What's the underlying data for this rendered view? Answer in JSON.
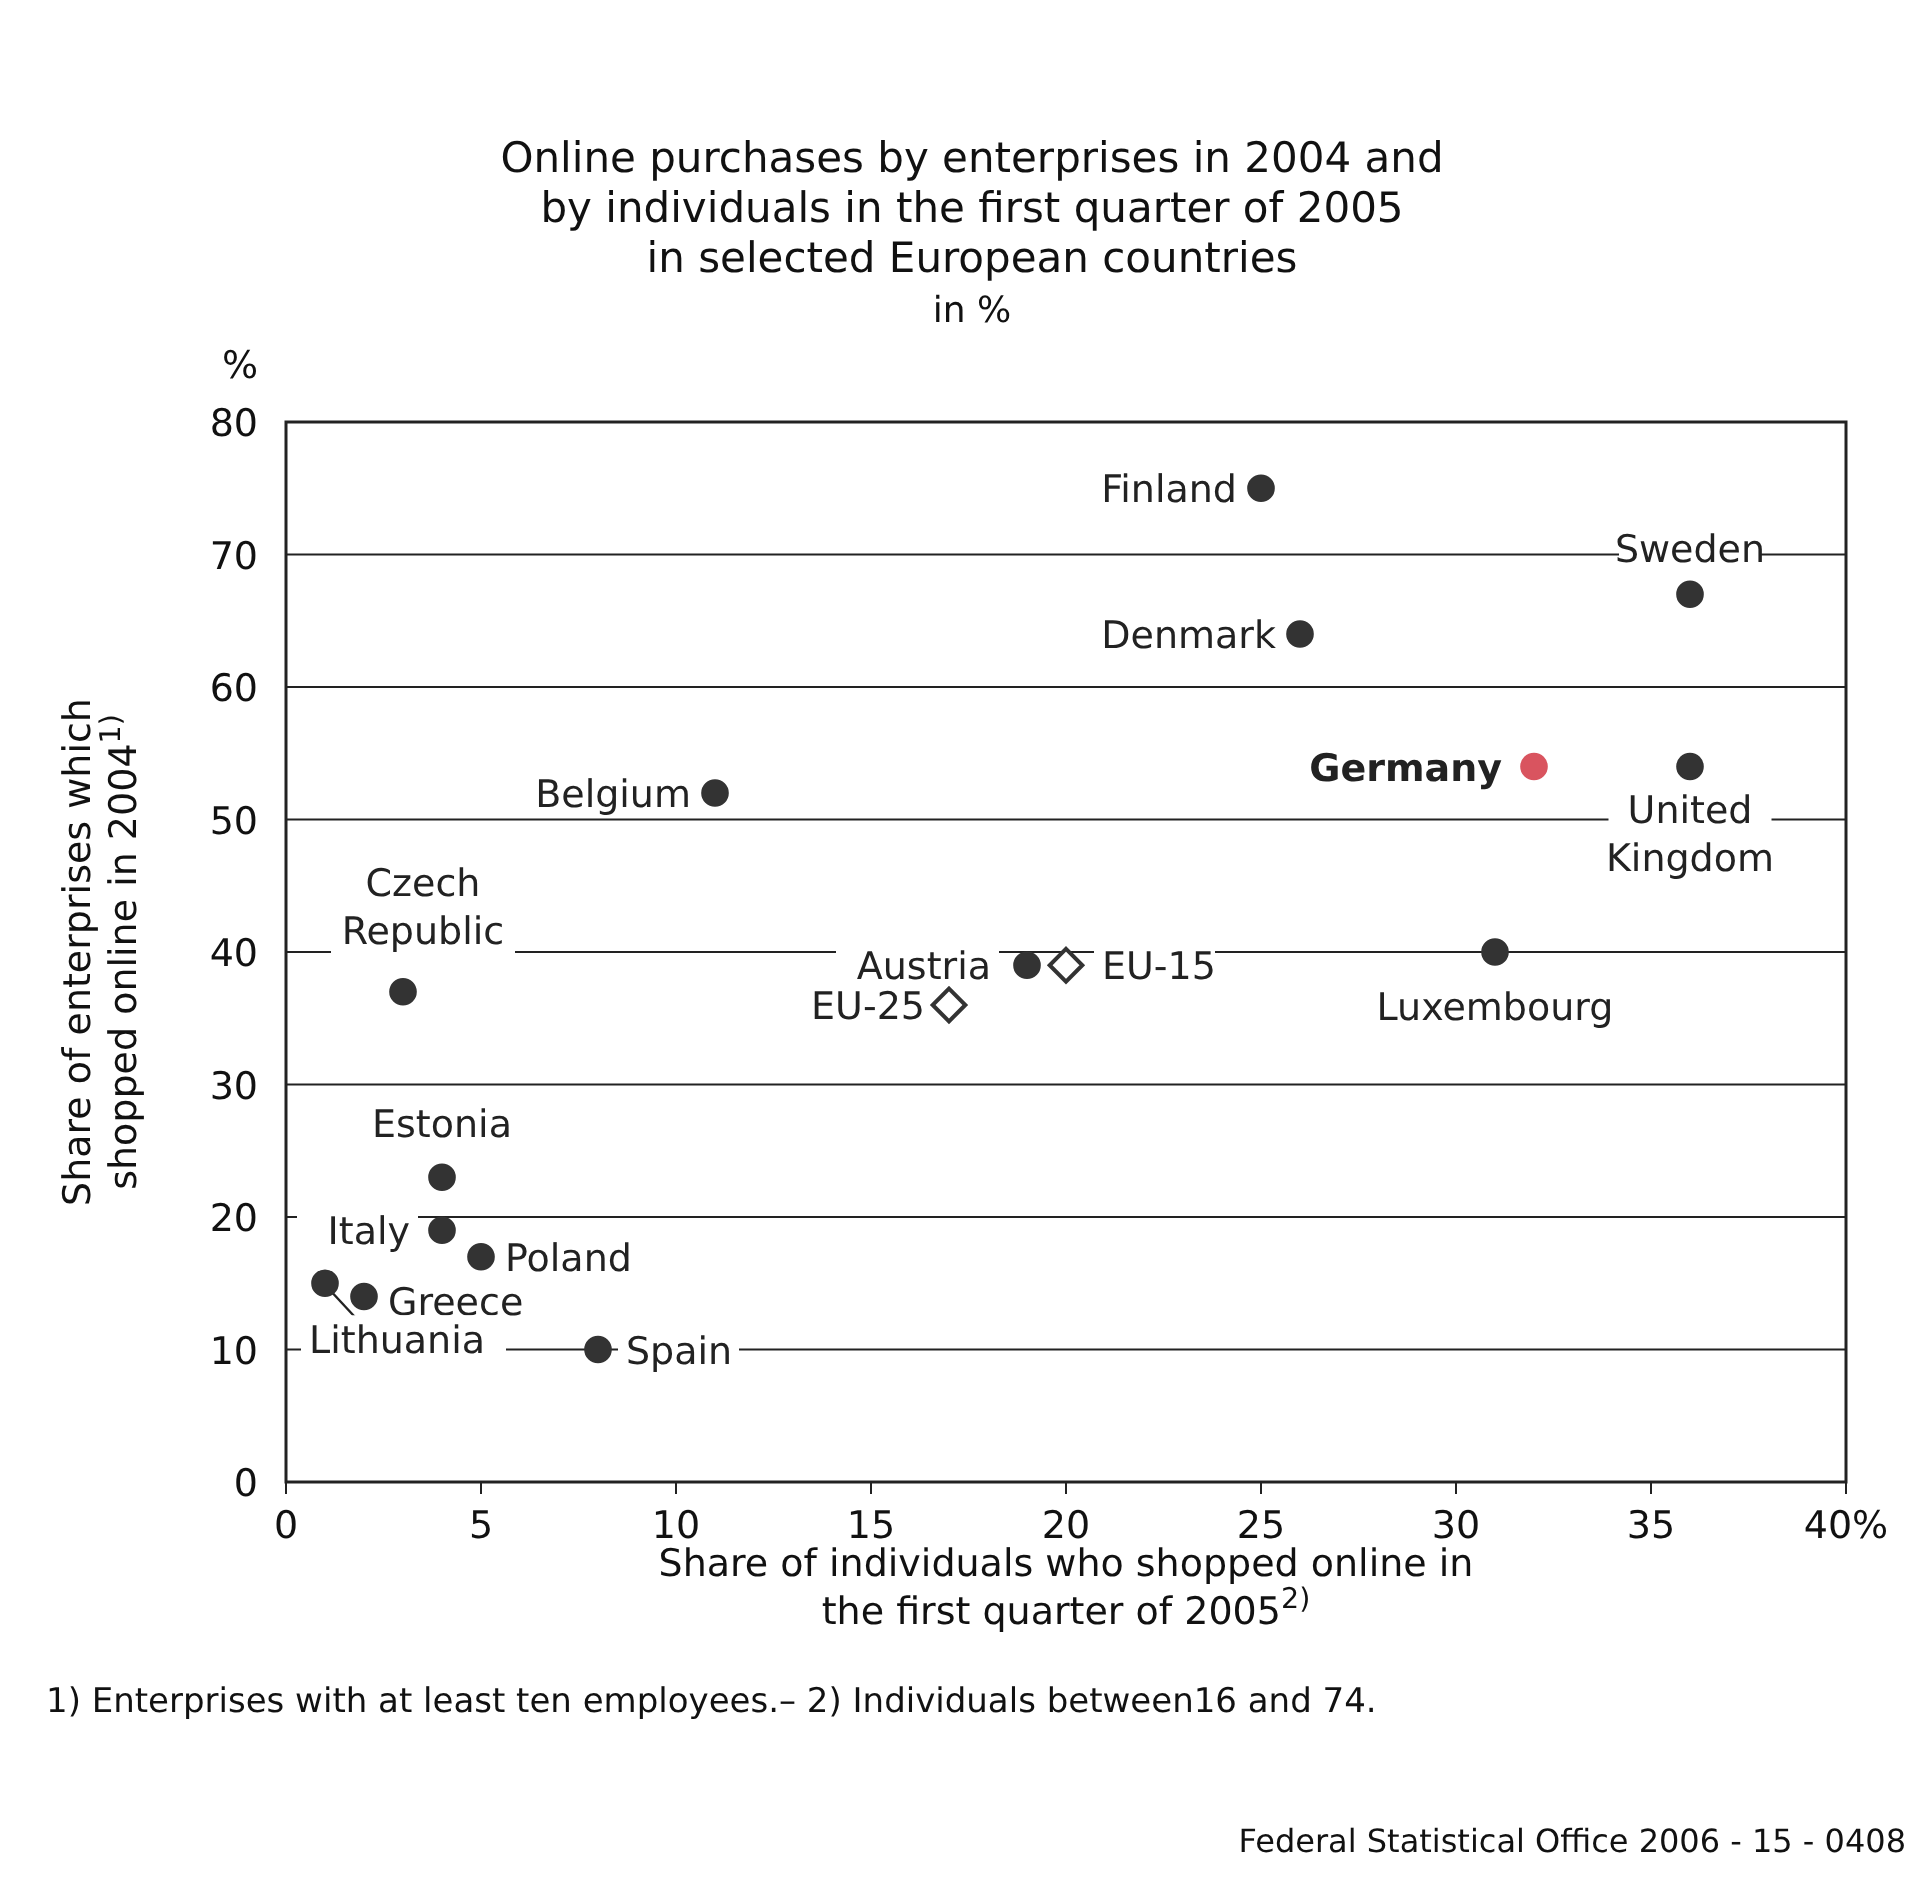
{
  "chart_data": {
    "type": "scatter",
    "title": "Online purchases by enterprises in 2004 and by individuals in the first quarter of 2005 in selected European countries",
    "subtitle": "in %",
    "xlabel": "Share of individuals who shopped online in the first quarter of 2005$^{2)}$",
    "ylabel": "Share of enterprises which shopped online in 2004$^{1)}$",
    "xlim": [
      0,
      40
    ],
    "xticks": [
      0,
      5,
      10,
      15,
      20,
      25,
      30,
      35,
      {
        "value": 40,
        "label": "40%"
      }
    ],
    "ylim": [
      0,
      80
    ],
    "yticks": [
      0,
      10,
      20,
      30,
      40,
      50,
      60,
      70,
      80
    ],
    "grid": "y",
    "series": [
      {
        "color": "#333333",
        "marker": "circle",
        "x": [
          25,
          36,
          26,
          36,
          11,
          3,
          19,
          31,
          4,
          4,
          5,
          1,
          2,
          8
        ],
        "values": [
          75,
          67,
          64,
          54,
          52,
          37,
          39,
          40,
          23,
          19,
          17,
          15,
          14,
          10
        ]
      },
      {
        "color": "#d9545f",
        "marker": "circle",
        "x": [
          32
        ],
        "values": [
          54
        ]
      },
      {
        "color": "#333333",
        "marker": "diamond",
        "x": [
          20,
          17
        ],
        "values": [
          39,
          36
        ]
      }
    ],
    "annotations": [
      "%",
      {
        "text": "Finland",
        "x": 25,
        "y": 75
      },
      {
        "text": "Sweden",
        "x": 36,
        "y": 67
      },
      {
        "text": "Denmark",
        "x": 26,
        "y": 64
      },
      {
        "text": "Germany",
        "x": 32,
        "y": 54
      },
      {
        "text": "United Kingdom",
        "x": 36,
        "y": 54
      },
      {
        "text": "Belgium",
        "x": 11,
        "y": 52
      },
      {
        "text": "Czech Republic",
        "x": 3,
        "y": 37
      },
      {
        "text": "Austria",
        "x": 19,
        "y": 39
      },
      {
        "text": "EU-15",
        "x": 20,
        "y": 39
      },
      {
        "text": "EU-25",
        "x": 17,
        "y": 36
      },
      {
        "text": "Luxembourg",
        "x": 31,
        "y": 40
      },
      {
        "text": "Estonia",
        "x": 4,
        "y": 23
      },
      {
        "text": "Italy",
        "x": 4,
        "y": 19
      },
      {
        "text": "Poland",
        "x": 5,
        "y": 17
      },
      {
        "text": "Greece",
        "x": 2,
        "y": 14
      },
      {
        "text": "Lithuania",
        "x": 1,
        "y": 15
      },
      {
        "text": "Spain",
        "x": 8,
        "y": 10
      },
      "1) Enterprises with at least ten employees.– 2) Individuals between16 and 74.",
      "Federal Statistical Office 2006 - 15 - 0408"
    ]
  }
}
